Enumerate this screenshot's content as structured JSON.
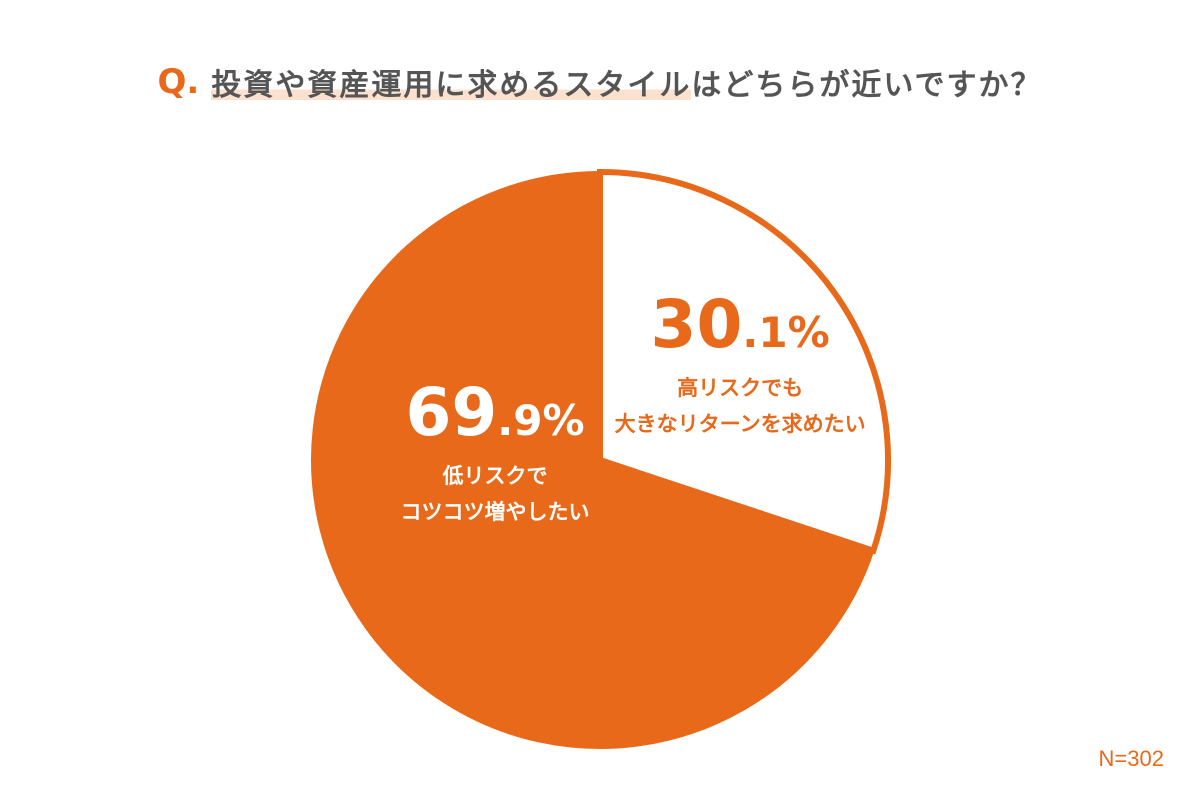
{
  "question": {
    "prefix": "Q.",
    "highlighted": "投資や資産運用に求めるスタイル",
    "rest": "はどちらが近いですか？"
  },
  "colors": {
    "accent": "#E8691A",
    "background": "#FFFFFF",
    "text": "#555555",
    "highlight": "#FBE1CE"
  },
  "chart_data": {
    "type": "pie",
    "slices": [
      {
        "value": 30.1,
        "pct_main": "30",
        "pct_sub": ".1%",
        "label_lines": [
          "高リスクでも",
          "大きなリターンを求めたい"
        ],
        "fill": "#FFFFFF",
        "stroke": "#E8691A",
        "text_color": "#E8691A"
      },
      {
        "value": 69.9,
        "pct_main": "69",
        "pct_sub": ".9%",
        "label_lines": [
          "低リスクで",
          "コツコツ増やしたい"
        ],
        "fill": "#E8691A",
        "stroke": "#E8691A",
        "text_color": "#FFFFFF"
      }
    ],
    "start_angle": "12 o'clock",
    "direction": "clockwise"
  },
  "footnote": "N=302"
}
